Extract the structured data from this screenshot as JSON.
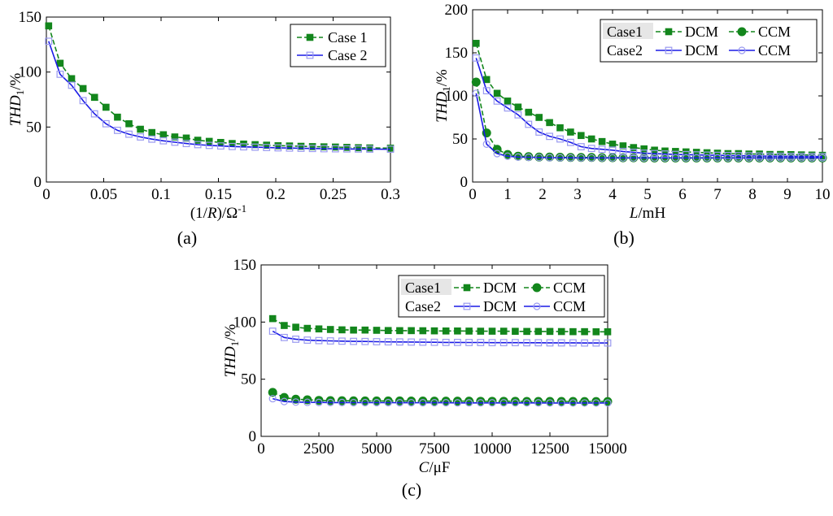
{
  "figure": {
    "panel_labels": [
      "(a)",
      "(b)",
      "(c)"
    ]
  },
  "colors": {
    "case1": "#13861c",
    "case2": "#1a1ae6",
    "case2_marker": "#9a9af0"
  },
  "chart_data": [
    {
      "type": "line",
      "panel": "a",
      "ylabel_italic": "THD",
      "ylabel_sub": "1",
      "ylabel_rest": "/%",
      "xlabel_parts": [
        "(1/",
        "R",
        ")/Ω",
        "-1"
      ],
      "xlim": [
        0,
        0.3
      ],
      "ylim": [
        0,
        150
      ],
      "xticks": [
        0,
        0.05,
        0.1,
        0.15,
        0.2,
        0.25,
        0.3
      ],
      "xtick_labels": [
        "0",
        "0.05",
        "0.1",
        "0.15",
        "0.2",
        "0.25",
        "0.3"
      ],
      "yticks": [
        0,
        50,
        100,
        150
      ],
      "ytick_labels": [
        "0",
        "50",
        "100",
        "150"
      ],
      "legend": [
        "Case 1",
        "Case 2"
      ],
      "series": [
        {
          "name": "Case 1",
          "color_key": "case1",
          "marker": "square-filled",
          "dash": "6,3",
          "x": [
            0.002,
            0.012,
            0.022,
            0.032,
            0.042,
            0.052,
            0.062,
            0.072,
            0.082,
            0.092,
            0.102,
            0.112,
            0.122,
            0.132,
            0.142,
            0.152,
            0.162,
            0.172,
            0.182,
            0.192,
            0.202,
            0.212,
            0.222,
            0.232,
            0.242,
            0.252,
            0.262,
            0.272,
            0.282,
            0.3
          ],
          "y": [
            142,
            108,
            94,
            85,
            77,
            68,
            59,
            53,
            48,
            45,
            43,
            41,
            40,
            38,
            37,
            36,
            35,
            34.5,
            34,
            33.5,
            33,
            32.8,
            32.5,
            32.2,
            32,
            31.8,
            31.5,
            31.2,
            31,
            30.8
          ]
        },
        {
          "name": "Case 2",
          "color_key": "case2",
          "marker": "square-open",
          "dash": "",
          "x": [
            0.002,
            0.012,
            0.022,
            0.032,
            0.042,
            0.052,
            0.062,
            0.072,
            0.082,
            0.092,
            0.102,
            0.112,
            0.122,
            0.132,
            0.142,
            0.152,
            0.162,
            0.172,
            0.182,
            0.192,
            0.202,
            0.212,
            0.222,
            0.232,
            0.242,
            0.252,
            0.262,
            0.272,
            0.282,
            0.3
          ],
          "y": [
            128,
            98,
            88,
            74,
            62,
            53,
            47,
            43.5,
            41,
            39,
            37.5,
            36.2,
            35,
            34,
            33.3,
            32.8,
            32.3,
            32,
            31.7,
            31.4,
            31.1,
            30.9,
            30.7,
            30.5,
            30.3,
            30.2,
            30.1,
            30,
            29.9,
            29.8
          ]
        }
      ]
    },
    {
      "type": "line",
      "panel": "b",
      "ylabel_italic": "THD",
      "ylabel_sub": "1",
      "ylabel_rest": "/%",
      "xlabel_parts": [
        "",
        "L",
        "/mH",
        ""
      ],
      "xlim": [
        0,
        10
      ],
      "ylim": [
        0,
        200
      ],
      "xticks": [
        0,
        1,
        2,
        3,
        4,
        5,
        6,
        7,
        8,
        9,
        10
      ],
      "xtick_labels": [
        "0",
        "1",
        "2",
        "3",
        "4",
        "5",
        "6",
        "7",
        "8",
        "9",
        "10"
      ],
      "yticks": [
        0,
        50,
        100,
        150,
        200
      ],
      "ytick_labels": [
        "0",
        "50",
        "100",
        "150",
        "200"
      ],
      "legend_rows": [
        {
          "case": "Case1",
          "dcm": "DCM",
          "ccm": "CCM"
        },
        {
          "case": "Case2",
          "dcm": "DCM",
          "ccm": "CCM"
        }
      ],
      "series": [
        {
          "name": "Case1 DCM",
          "color_key": "case1",
          "marker": "square-filled",
          "dash": "6,3",
          "x": [
            0.1,
            0.4,
            0.7,
            1.0,
            1.3,
            1.6,
            1.9,
            2.2,
            2.5,
            2.8,
            3.1,
            3.4,
            3.7,
            4.0,
            4.3,
            4.6,
            4.9,
            5.2,
            5.5,
            5.8,
            6.1,
            6.4,
            6.7,
            7.0,
            7.3,
            7.6,
            7.9,
            8.2,
            8.5,
            8.8,
            9.1,
            9.4,
            9.7,
            10.0
          ],
          "y": [
            161,
            119,
            103,
            94,
            87,
            81,
            75,
            69,
            63,
            58,
            54,
            50,
            47,
            44,
            42,
            40,
            38.5,
            37,
            36,
            35.5,
            35,
            34.5,
            34,
            33.5,
            33,
            33,
            32.5,
            32.5,
            32,
            32,
            31.8,
            31.5,
            31.3,
            31
          ]
        },
        {
          "name": "Case1 CCM",
          "color_key": "case1",
          "marker": "circle-filled",
          "dash": "6,3",
          "x": [
            0.1,
            0.4,
            0.7,
            1.0,
            1.3,
            1.6,
            1.9,
            2.2,
            2.5,
            2.8,
            3.1,
            3.4,
            3.7,
            4.0,
            4.3,
            4.6,
            4.9,
            5.2,
            5.5,
            5.8,
            6.1,
            6.4,
            6.7,
            7.0,
            7.3,
            7.6,
            7.9,
            8.2,
            8.5,
            8.8,
            9.1,
            9.4,
            9.7,
            10.0
          ],
          "y": [
            116,
            57,
            38,
            32,
            30,
            29.5,
            29,
            29,
            28.8,
            28.5,
            28.5,
            28.5,
            28.3,
            28.3,
            28.2,
            28.2,
            28,
            28,
            28,
            28,
            28,
            28,
            28,
            28,
            28,
            28,
            28,
            28,
            28,
            28,
            28,
            28,
            28,
            28
          ]
        },
        {
          "name": "Case2 DCM",
          "color_key": "case2",
          "marker": "square-open",
          "dash": "",
          "x": [
            0.1,
            0.4,
            0.7,
            1.0,
            1.3,
            1.6,
            1.9,
            2.2,
            2.5,
            2.8,
            3.1,
            3.4,
            3.7,
            4.0,
            4.3,
            4.6,
            4.9,
            5.2,
            5.5,
            5.8,
            6.1,
            6.4,
            6.7,
            7.0,
            7.3,
            7.6,
            7.9,
            8.2,
            8.5,
            8.8,
            9.1,
            9.4,
            9.7,
            10.0
          ],
          "y": [
            144,
            106,
            94,
            86,
            78,
            67,
            58,
            53,
            50,
            46,
            41,
            39,
            38,
            37,
            35.5,
            34.5,
            33.5,
            33,
            32.5,
            32,
            31.8,
            31.5,
            31.2,
            31,
            30.8,
            30.6,
            30.4,
            30.2,
            30,
            29.9,
            29.8,
            29.7,
            29.6,
            29.5
          ]
        },
        {
          "name": "Case2 CCM",
          "color_key": "case2",
          "marker": "circle-open",
          "dash": "",
          "x": [
            0.1,
            0.4,
            0.7,
            1.0,
            1.3,
            1.6,
            1.9,
            2.2,
            2.5,
            2.8,
            3.1,
            3.4,
            3.7,
            4.0,
            4.3,
            4.6,
            4.9,
            5.2,
            5.5,
            5.8,
            6.1,
            6.4,
            6.7,
            7.0,
            7.3,
            7.6,
            7.9,
            8.2,
            8.5,
            8.8,
            9.1,
            9.4,
            9.7,
            10.0
          ],
          "y": [
            103,
            44,
            33,
            30,
            29,
            28.8,
            28.5,
            28.3,
            28.2,
            28.1,
            28,
            28,
            28,
            28,
            28,
            28,
            28,
            28,
            28,
            28,
            28,
            28,
            28,
            28,
            28,
            28,
            28,
            28,
            28,
            28,
            28,
            28,
            28,
            28
          ]
        }
      ]
    },
    {
      "type": "line",
      "panel": "c",
      "ylabel_italic": "THD",
      "ylabel_sub": "1",
      "ylabel_rest": "/%",
      "xlabel_parts": [
        "",
        "C",
        "/μF",
        ""
      ],
      "xlim": [
        0,
        15000
      ],
      "ylim": [
        0,
        150
      ],
      "xticks": [
        0,
        2500,
        5000,
        7500,
        10000,
        12500,
        15000
      ],
      "xtick_labels": [
        "0",
        "2500",
        "5000",
        "7500",
        "10000",
        "12500",
        "15000"
      ],
      "yticks": [
        0,
        50,
        100,
        150
      ],
      "ytick_labels": [
        "0",
        "50",
        "100",
        "150"
      ],
      "legend_rows": [
        {
          "case": "Case1",
          "dcm": "DCM",
          "ccm": "CCM"
        },
        {
          "case": "Case2",
          "dcm": "DCM",
          "ccm": "CCM"
        }
      ],
      "series": [
        {
          "name": "Case1 DCM",
          "color_key": "case1",
          "marker": "square-filled",
          "dash": "6,3",
          "x": [
            500,
            1000,
            1500,
            2000,
            2500,
            3000,
            3500,
            4000,
            4500,
            5000,
            5500,
            6000,
            6500,
            7000,
            7500,
            8000,
            8500,
            9000,
            9500,
            10000,
            10500,
            11000,
            11500,
            12000,
            12500,
            13000,
            13500,
            14000,
            14500,
            15000
          ],
          "y": [
            103,
            97,
            95.5,
            94.5,
            94,
            93.5,
            93.2,
            93,
            93,
            92.8,
            92.6,
            92.5,
            92.5,
            92.4,
            92.3,
            92.2,
            92.2,
            92.1,
            92,
            92,
            92,
            91.9,
            91.8,
            91.8,
            91.8,
            91.7,
            91.6,
            91.6,
            91.5,
            91.5
          ]
        },
        {
          "name": "Case1 CCM",
          "color_key": "case1",
          "marker": "circle-filled",
          "dash": "6,3",
          "x": [
            500,
            1000,
            1500,
            2000,
            2500,
            3000,
            3500,
            4000,
            4500,
            5000,
            5500,
            6000,
            6500,
            7000,
            7500,
            8000,
            8500,
            9000,
            9500,
            10000,
            10500,
            11000,
            11500,
            12000,
            12500,
            13000,
            13500,
            14000,
            14500,
            15000
          ],
          "y": [
            38.5,
            34,
            32.5,
            32,
            31.5,
            31.3,
            31.2,
            31.1,
            31,
            31,
            31,
            31,
            30.9,
            30.9,
            30.8,
            30.8,
            30.8,
            30.8,
            30.7,
            30.7,
            30.7,
            30.7,
            30.6,
            30.6,
            30.6,
            30.6,
            30.6,
            30.5,
            30.5,
            30.5
          ]
        },
        {
          "name": "Case2 DCM",
          "color_key": "case2",
          "marker": "square-open",
          "dash": "",
          "x": [
            500,
            1000,
            1500,
            2000,
            2500,
            3000,
            3500,
            4000,
            4500,
            5000,
            5500,
            6000,
            6500,
            7000,
            7500,
            8000,
            8500,
            9000,
            9500,
            10000,
            10500,
            11000,
            11500,
            12000,
            12500,
            13000,
            13500,
            14000,
            14500,
            15000
          ],
          "y": [
            92,
            86.5,
            85,
            84.2,
            83.8,
            83.5,
            83.3,
            83.1,
            83,
            82.8,
            82.7,
            82.6,
            82.5,
            82.4,
            82.3,
            82.2,
            82.2,
            82.1,
            82.1,
            82,
            82,
            82,
            81.9,
            81.9,
            81.8,
            81.8,
            81.8,
            81.7,
            81.7,
            81.7
          ]
        },
        {
          "name": "Case2 CCM",
          "color_key": "case2",
          "marker": "circle-open",
          "dash": "",
          "x": [
            500,
            1000,
            1500,
            2000,
            2500,
            3000,
            3500,
            4000,
            4500,
            5000,
            5500,
            6000,
            6500,
            7000,
            7500,
            8000,
            8500,
            9000,
            9500,
            10000,
            10500,
            11000,
            11500,
            12000,
            12500,
            13000,
            13500,
            14000,
            14500,
            15000
          ],
          "y": [
            33,
            30.5,
            30,
            29.8,
            29.7,
            29.6,
            29.6,
            29.5,
            29.5,
            29.5,
            29.5,
            29.4,
            29.4,
            29.4,
            29.4,
            29.4,
            29.3,
            29.3,
            29.3,
            29.3,
            29.3,
            29.3,
            29.3,
            29.3,
            29.2,
            29.2,
            29.2,
            29.2,
            29.2,
            29.2
          ]
        }
      ]
    }
  ]
}
